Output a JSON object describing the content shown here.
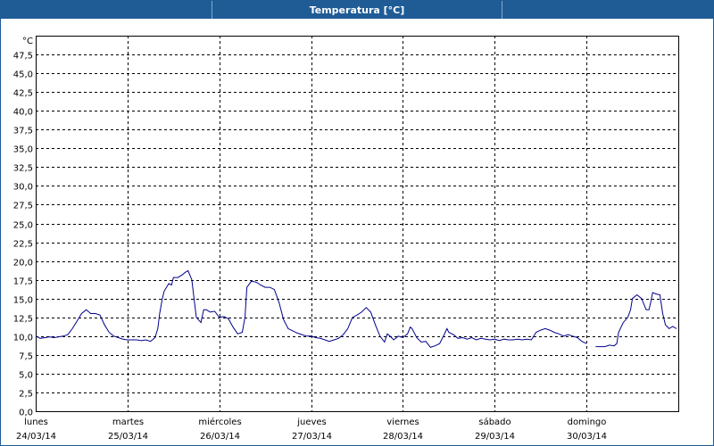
{
  "window": {
    "title": "Temperatura [°C]"
  },
  "chart_data": {
    "type": "line",
    "title": "Temperatura [°C]",
    "ylabel": "°C",
    "ylim": [
      0,
      50
    ],
    "xlim": [
      0,
      7
    ],
    "grid": true,
    "y_ticks": [
      "0,0",
      "2,5",
      "5,0",
      "7,5",
      "10,0",
      "12,5",
      "15,0",
      "17,5",
      "20,0",
      "22,5",
      "25,0",
      "27,5",
      "30,0",
      "32,5",
      "35,0",
      "37,5",
      "40,0",
      "42,5",
      "45,0",
      "47,5"
    ],
    "y_tick_values": [
      0,
      2.5,
      5,
      7.5,
      10,
      12.5,
      15,
      17.5,
      20,
      22.5,
      25,
      27.5,
      30,
      32.5,
      35,
      37.5,
      40,
      42.5,
      45,
      47.5
    ],
    "categories": [
      {
        "day": "lunes",
        "date": "24/03/14"
      },
      {
        "day": "martes",
        "date": "25/03/14"
      },
      {
        "day": "miércoles",
        "date": "26/03/14"
      },
      {
        "day": "jueves",
        "date": "27/03/14"
      },
      {
        "day": "viernes",
        "date": "28/03/14"
      },
      {
        "day": "sábado",
        "date": "29/03/14"
      },
      {
        "day": "domingo",
        "date": "30/03/14"
      }
    ],
    "line_color": "#00008b",
    "series": [
      {
        "segments": [
          [
            [
              0.0,
              10.0
            ],
            [
              0.05,
              9.7
            ],
            [
              0.1,
              9.8
            ],
            [
              0.15,
              9.9
            ],
            [
              0.2,
              9.8
            ],
            [
              0.25,
              9.9
            ],
            [
              0.3,
              10.0
            ],
            [
              0.35,
              10.2
            ],
            [
              0.4,
              11.0
            ],
            [
              0.45,
              12.0
            ],
            [
              0.5,
              13.0
            ],
            [
              0.55,
              13.5
            ],
            [
              0.6,
              13.0
            ],
            [
              0.65,
              13.0
            ],
            [
              0.7,
              12.8
            ],
            [
              0.75,
              11.5
            ],
            [
              0.8,
              10.5
            ],
            [
              0.85,
              10.0
            ],
            [
              0.9,
              9.8
            ],
            [
              0.95,
              9.6
            ],
            [
              1.0,
              9.5
            ],
            [
              1.05,
              9.5
            ],
            [
              1.1,
              9.5
            ],
            [
              1.15,
              9.4
            ],
            [
              1.2,
              9.5
            ],
            [
              1.25,
              9.3
            ],
            [
              1.3,
              9.8
            ],
            [
              1.33,
              11.0
            ],
            [
              1.35,
              13.0
            ],
            [
              1.38,
              15.0
            ],
            [
              1.4,
              16.0
            ],
            [
              1.45,
              17.0
            ],
            [
              1.48,
              16.8
            ],
            [
              1.5,
              17.8
            ],
            [
              1.55,
              17.8
            ],
            [
              1.6,
              18.2
            ],
            [
              1.63,
              18.5
            ],
            [
              1.66,
              18.7
            ],
            [
              1.7,
              17.5
            ],
            [
              1.73,
              14.5
            ],
            [
              1.75,
              12.5
            ],
            [
              1.8,
              11.8
            ],
            [
              1.83,
              13.5
            ],
            [
              1.86,
              13.5
            ],
            [
              1.9,
              13.2
            ],
            [
              1.95,
              13.3
            ],
            [
              2.0,
              12.5
            ],
            [
              2.05,
              12.6
            ],
            [
              2.1,
              12.3
            ],
            [
              2.15,
              11.2
            ],
            [
              2.2,
              10.3
            ],
            [
              2.25,
              10.5
            ],
            [
              2.28,
              12.5
            ],
            [
              2.3,
              16.5
            ],
            [
              2.35,
              17.3
            ],
            [
              2.4,
              17.2
            ],
            [
              2.45,
              16.8
            ],
            [
              2.5,
              16.5
            ],
            [
              2.55,
              16.5
            ],
            [
              2.6,
              16.2
            ],
            [
              2.65,
              14.5
            ],
            [
              2.7,
              12.2
            ],
            [
              2.75,
              11.0
            ],
            [
              2.8,
              10.7
            ],
            [
              2.85,
              10.4
            ],
            [
              2.9,
              10.2
            ],
            [
              2.95,
              10.0
            ],
            [
              3.0,
              10.0
            ],
            [
              3.05,
              9.8
            ],
            [
              3.1,
              9.7
            ],
            [
              3.15,
              9.5
            ],
            [
              3.2,
              9.3
            ],
            [
              3.25,
              9.5
            ],
            [
              3.3,
              9.7
            ],
            [
              3.35,
              10.2
            ],
            [
              3.4,
              11.0
            ],
            [
              3.45,
              12.5
            ],
            [
              3.5,
              12.8
            ],
            [
              3.55,
              13.2
            ],
            [
              3.6,
              13.8
            ],
            [
              3.65,
              13.2
            ],
            [
              3.7,
              11.5
            ],
            [
              3.75,
              10.0
            ],
            [
              3.8,
              9.2
            ],
            [
              3.83,
              10.3
            ],
            [
              3.86,
              10.0
            ],
            [
              3.9,
              9.5
            ],
            [
              3.95,
              10.0
            ],
            [
              4.0,
              9.8
            ],
            [
              4.05,
              10.3
            ],
            [
              4.08,
              11.2
            ],
            [
              4.1,
              11.0
            ],
            [
              4.15,
              9.8
            ],
            [
              4.2,
              9.2
            ],
            [
              4.25,
              9.3
            ],
            [
              4.3,
              8.5
            ],
            [
              4.35,
              8.7
            ],
            [
              4.4,
              9.0
            ],
            [
              4.45,
              10.2
            ],
            [
              4.48,
              11.0
            ],
            [
              4.5,
              10.5
            ],
            [
              4.55,
              10.2
            ],
            [
              4.6,
              9.7
            ],
            [
              4.65,
              9.8
            ],
            [
              4.7,
              9.6
            ],
            [
              4.75,
              9.8
            ],
            [
              4.8,
              9.5
            ],
            [
              4.85,
              9.7
            ],
            [
              4.9,
              9.6
            ],
            [
              4.95,
              9.5
            ],
            [
              5.0,
              9.6
            ],
            [
              5.05,
              9.4
            ],
            [
              5.1,
              9.6
            ],
            [
              5.15,
              9.5
            ],
            [
              5.2,
              9.5
            ],
            [
              5.25,
              9.6
            ],
            [
              5.3,
              9.5
            ],
            [
              5.35,
              9.6
            ],
            [
              5.4,
              9.5
            ],
            [
              5.45,
              10.5
            ],
            [
              5.5,
              10.8
            ],
            [
              5.55,
              11.0
            ],
            [
              5.6,
              10.8
            ],
            [
              5.65,
              10.5
            ],
            [
              5.7,
              10.3
            ],
            [
              5.75,
              10.0
            ],
            [
              5.8,
              10.2
            ],
            [
              5.85,
              10.0
            ],
            [
              5.9,
              9.8
            ],
            [
              5.95,
              9.3
            ],
            [
              6.0,
              9.0
            ]
          ],
          [
            [
              6.1,
              8.6
            ],
            [
              6.15,
              8.6
            ],
            [
              6.2,
              8.6
            ],
            [
              6.25,
              8.8
            ],
            [
              6.3,
              8.7
            ],
            [
              6.33,
              9.0
            ],
            [
              6.35,
              10.5
            ],
            [
              6.4,
              11.8
            ],
            [
              6.45,
              12.5
            ],
            [
              6.48,
              13.5
            ],
            [
              6.5,
              15.0
            ],
            [
              6.55,
              15.5
            ],
            [
              6.6,
              15.0
            ],
            [
              6.65,
              13.5
            ],
            [
              6.68,
              13.5
            ],
            [
              6.7,
              14.5
            ],
            [
              6.72,
              15.8
            ],
            [
              6.76,
              15.6
            ],
            [
              6.8,
              15.5
            ],
            [
              6.83,
              13.0
            ],
            [
              6.86,
              11.5
            ],
            [
              6.9,
              11.0
            ],
            [
              6.94,
              11.3
            ],
            [
              6.98,
              11.0
            ]
          ]
        ]
      }
    ]
  }
}
